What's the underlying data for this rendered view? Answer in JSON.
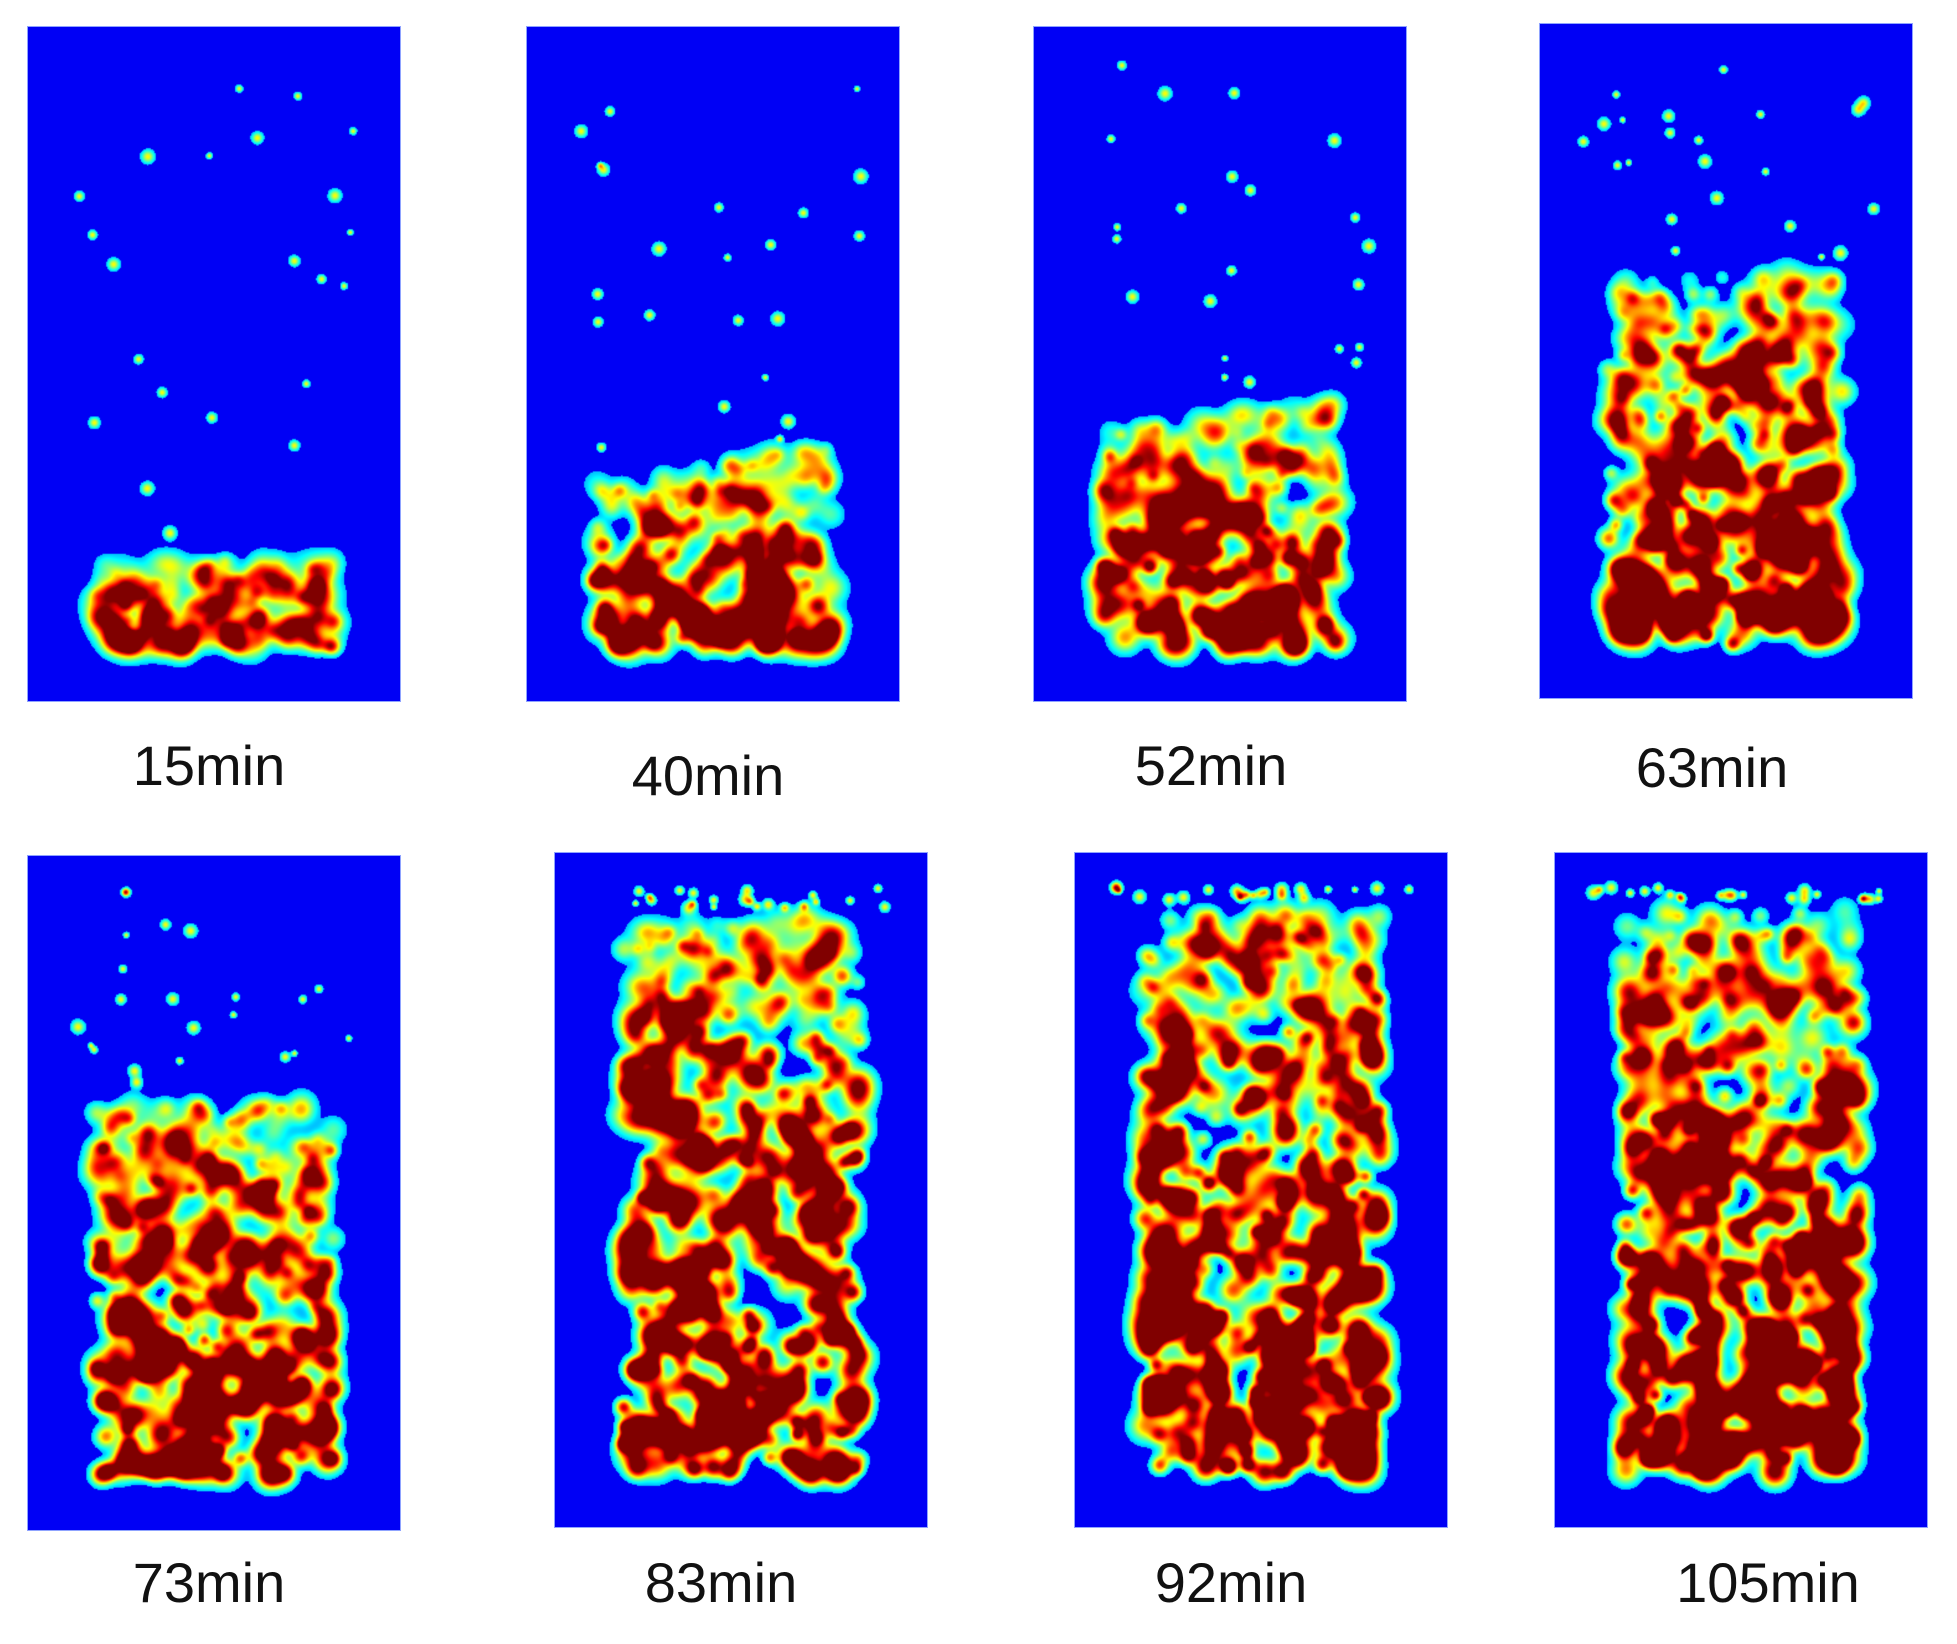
{
  "panels": [
    {
      "label": "15min",
      "front_fraction": 0.15,
      "tilt": -0.05,
      "density": 0.45
    },
    {
      "label": "40min",
      "front_fraction": 0.31,
      "tilt": -0.15,
      "density": 0.65
    },
    {
      "label": "52min",
      "front_fraction": 0.39,
      "tilt": -0.14,
      "density": 0.7
    },
    {
      "label": "63min",
      "front_fraction": 0.62,
      "tilt": -0.05,
      "density": 0.8
    },
    {
      "label": "73min",
      "front_fraction": 0.63,
      "tilt": -0.02,
      "density": 0.85
    },
    {
      "label": "83min",
      "front_fraction": 0.93,
      "tilt": -0.1,
      "density": 0.9
    },
    {
      "label": "92min",
      "front_fraction": 0.95,
      "tilt": -0.03,
      "density": 0.95
    },
    {
      "label": "105min",
      "front_fraction": 0.95,
      "tilt": 0.0,
      "density": 0.95
    }
  ],
  "colors": {
    "background": "#0000f5",
    "page": "#ffffff",
    "caption": "#111111"
  }
}
